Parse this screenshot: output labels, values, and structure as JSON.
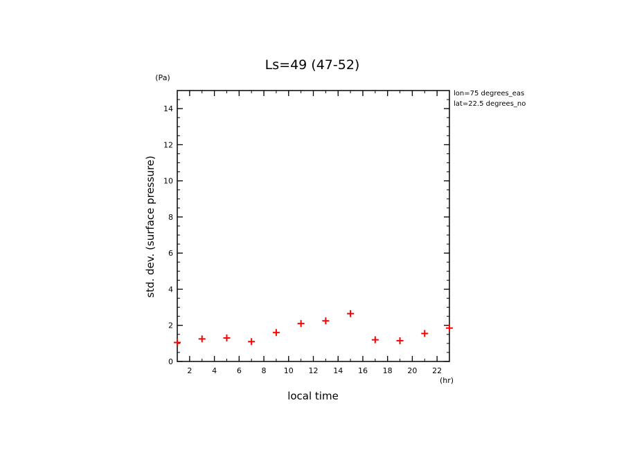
{
  "chart_data": {
    "type": "scatter",
    "title": "Ls=49 (47-52)",
    "xlabel": "local time",
    "ylabel": "std. dev. (surface pressure)",
    "x_unit": "(hr)",
    "y_unit": "(Pa)",
    "xlim": [
      1,
      23
    ],
    "ylim": [
      0,
      15
    ],
    "xticks": [
      2,
      4,
      6,
      8,
      10,
      12,
      14,
      16,
      18,
      20,
      22
    ],
    "yticks": [
      0,
      2,
      4,
      6,
      8,
      10,
      12,
      14
    ],
    "annotations": [
      "lon=75 degrees_eas",
      "lat=22.5 degrees_no"
    ],
    "marker": "+",
    "marker_color": "#ff0000",
    "grid": false,
    "series": [
      {
        "x": [
          1,
          3,
          5,
          7,
          9,
          11,
          13,
          15,
          17,
          19,
          21,
          23
        ],
        "y": [
          1.05,
          1.25,
          1.3,
          1.1,
          1.6,
          2.1,
          2.25,
          2.65,
          1.2,
          1.15,
          1.55,
          1.85
        ]
      }
    ]
  }
}
